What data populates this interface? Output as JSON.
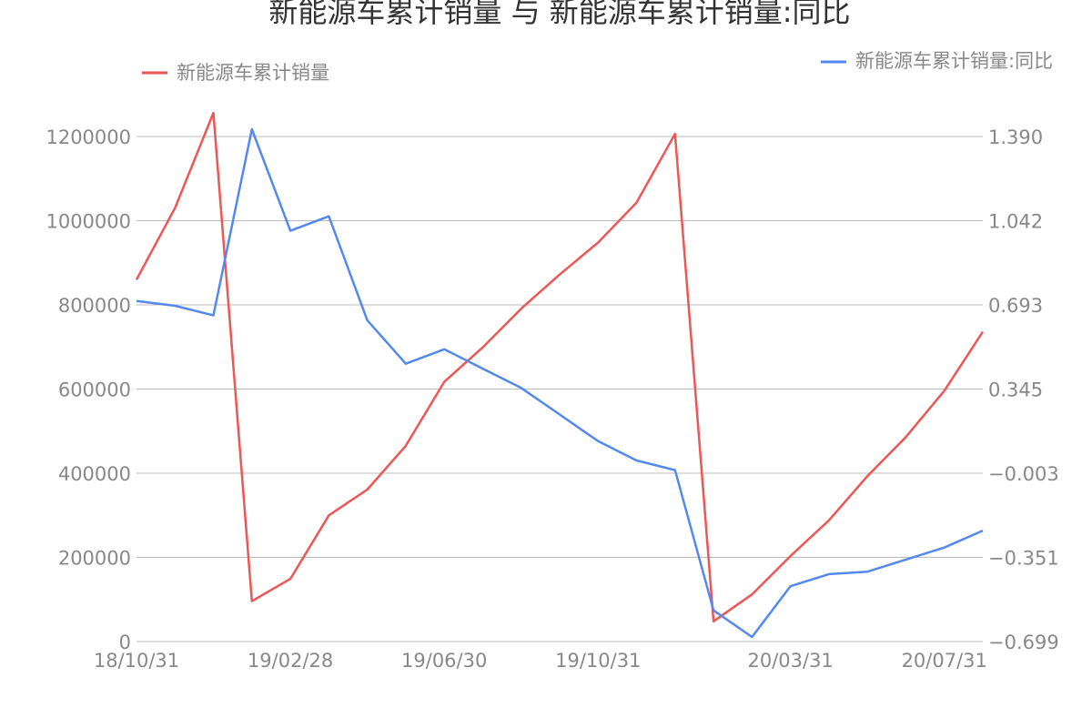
{
  "chart_data": {
    "type": "line",
    "title": "新能源车累计销量 与 新能源车累计销量:同比",
    "x": [
      "18/10/31",
      "18/11/30",
      "18/12/31",
      "19/01/31",
      "19/02/28",
      "19/03/31",
      "19/04/30",
      "19/05/31",
      "19/06/30",
      "19/07/31",
      "19/08/31",
      "19/09/30",
      "19/10/31",
      "19/11/30",
      "19/12/31",
      "20/01/31",
      "20/02/29",
      "20/03/31",
      "20/04/30",
      "20/05/31",
      "20/06/30",
      "20/07/31",
      "20/08/31"
    ],
    "x_tick_labels": [
      "18/10/31",
      "19/02/28",
      "19/06/30",
      "19/10/31",
      "20/03/31",
      "20/07/31"
    ],
    "series": [
      {
        "name": "新能源车累计销量",
        "axis": "left",
        "color": "#ee5555",
        "values": [
          860000,
          1030000,
          1256000,
          96000,
          149000,
          300000,
          361000,
          465000,
          617000,
          699000,
          791000,
          872000,
          948000,
          1043000,
          1206000,
          48000,
          112000,
          203000,
          288000,
          393000,
          486000,
          596000,
          736000
        ]
      },
      {
        "name": "新能源车累计销量:同比",
        "axis": "right",
        "color": "#5588ee",
        "values": [
          0.71,
          0.69,
          0.65,
          1.42,
          1.0,
          1.06,
          0.63,
          0.45,
          0.51,
          0.43,
          0.35,
          0.24,
          0.13,
          0.05,
          0.01,
          -0.57,
          -0.68,
          -0.47,
          -0.42,
          -0.41,
          -0.36,
          -0.31,
          -0.24
        ]
      }
    ],
    "y_left": {
      "ticks": [
        "0",
        "200000",
        "400000",
        "600000",
        "800000",
        "1000000",
        "1200000"
      ],
      "ylim": [
        0,
        1200000
      ]
    },
    "y_right": {
      "ticks": [
        "−0.699",
        "−0.351",
        "−0.003",
        "0.345",
        "0.693",
        "1.042",
        "1.390"
      ],
      "ylim": [
        -0.699,
        1.39
      ]
    },
    "grid": true,
    "legend_placement": "top",
    "colors": {
      "left_series": "#ee5555",
      "right_series": "#5588ee",
      "grid": "#bbbbbb",
      "text": "#888888"
    }
  }
}
